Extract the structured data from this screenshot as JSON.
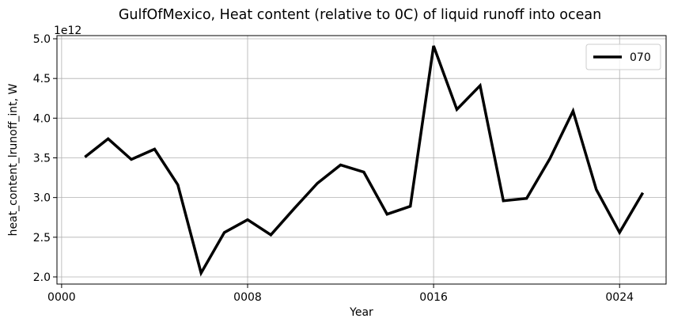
{
  "chart_data": {
    "type": "line",
    "title": "GulfOfMexico, Heat content (relative to 0C) of liquid runoff into ocean",
    "xlabel": "Year",
    "ylabel": "heat_content_lrunoff_int, W",
    "y_offset_label": "1e12",
    "xlim": [
      -0.2,
      26.0
    ],
    "ylim": [
      1.91,
      5.04
    ],
    "x_ticks": [
      0,
      8,
      16,
      24
    ],
    "x_tick_labels": [
      "0000",
      "0008",
      "0016",
      "0024"
    ],
    "y_ticks": [
      2.0,
      2.5,
      3.0,
      3.5,
      4.0,
      4.5,
      5.0
    ],
    "y_tick_labels": [
      "2.0",
      "2.5",
      "3.0",
      "3.5",
      "4.0",
      "4.5",
      "5.0"
    ],
    "grid": true,
    "legend_position": "top-right",
    "series": [
      {
        "name": "070",
        "color": "#000000",
        "x": [
          1,
          2,
          3,
          4,
          5,
          6,
          7,
          8,
          9,
          10,
          11,
          12,
          13,
          14,
          15,
          16,
          17,
          18,
          19,
          20,
          21,
          22,
          23,
          24,
          25
        ],
        "values": [
          3.51,
          3.74,
          3.48,
          3.61,
          3.16,
          2.05,
          2.56,
          2.72,
          2.53,
          2.86,
          3.18,
          3.41,
          3.32,
          2.79,
          2.89,
          4.91,
          4.11,
          4.41,
          2.96,
          2.99,
          3.49,
          4.09,
          3.1,
          2.56,
          3.06
        ]
      }
    ]
  }
}
